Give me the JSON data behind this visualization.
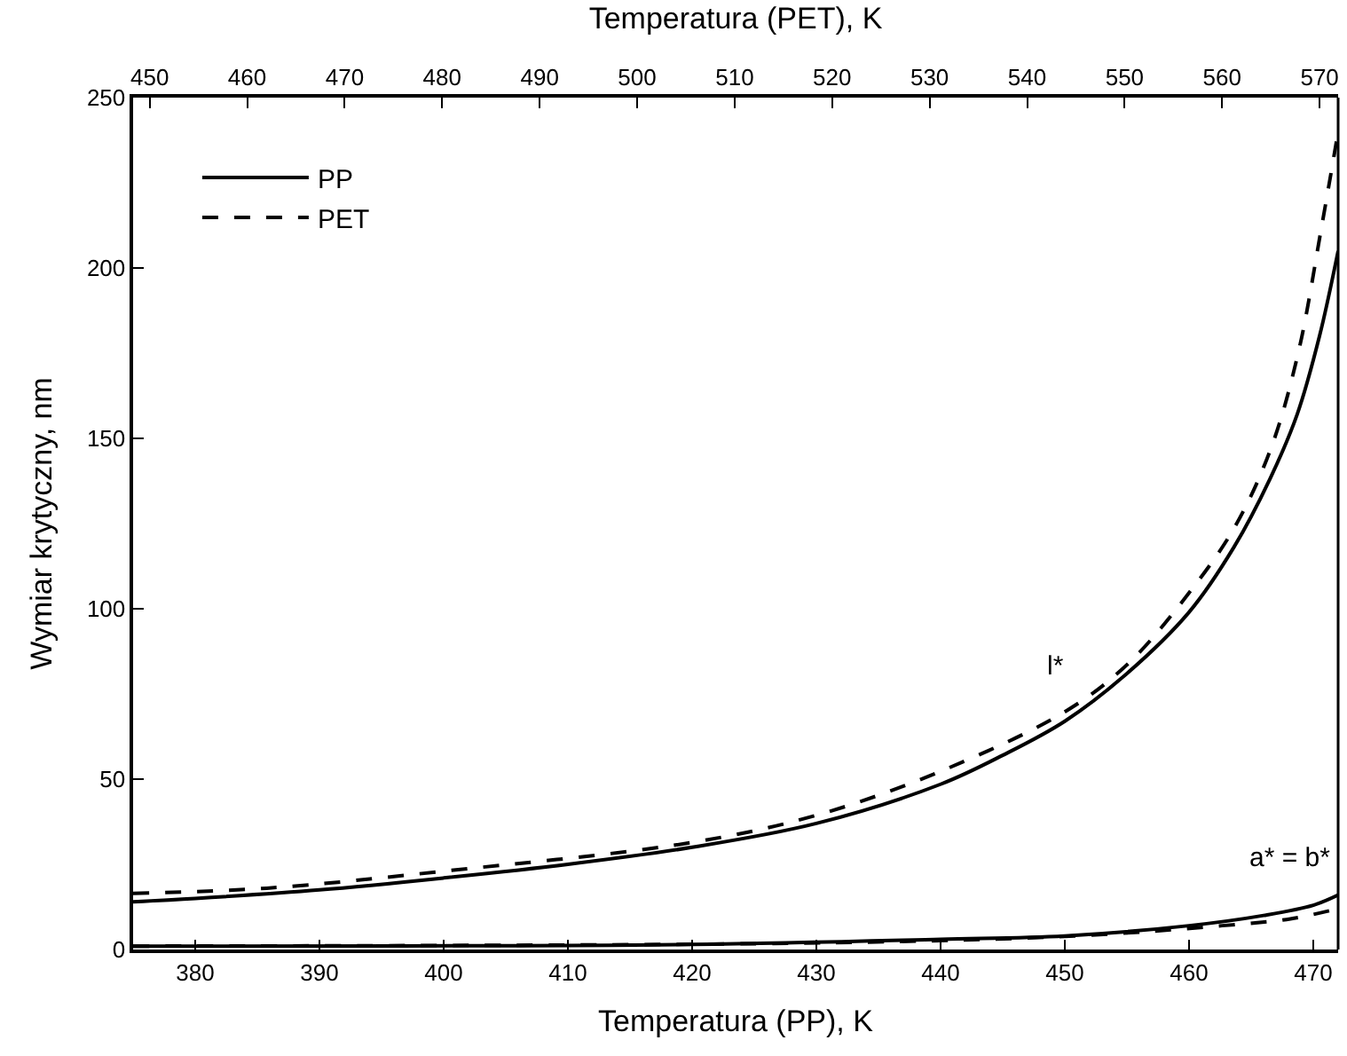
{
  "chart_data": {
    "type": "line",
    "xlabel": "Temperatura (PP), K",
    "x2label": "Temperatura (PET), K",
    "ylabel": "Wymiar krytyczny, nm",
    "xlim": [
      375,
      472
    ],
    "xticks": [
      380,
      390,
      400,
      410,
      420,
      430,
      440,
      450,
      460,
      470
    ],
    "x2lim": [
      448.3,
      571.9
    ],
    "x2ticks": [
      450,
      460,
      470,
      480,
      490,
      500,
      510,
      520,
      530,
      540,
      550,
      560,
      570
    ],
    "ylim": [
      0,
      250
    ],
    "yticks": [
      0,
      50,
      100,
      150,
      200,
      250
    ],
    "legend": "top left",
    "marker": "none",
    "series": [
      {
        "name": "PP",
        "color": "#000000",
        "line_style": "solid",
        "x": [
          375,
          380,
          390,
          400,
          410,
          420,
          430,
          440,
          445,
          450,
          455,
          460,
          463.6,
          466.5,
          468.7,
          470.5,
          472
        ],
        "values": [
          14,
          15,
          17.5,
          21,
          25,
          30,
          37,
          48.5,
          57,
          67,
          81,
          99,
          118,
          138,
          157,
          180,
          205
        ]
      },
      {
        "name": "PET",
        "color": "#000000",
        "line_style": "dashed",
        "axis": "x2",
        "x": [
          448.3,
          462,
          480.2,
          505.8,
          518.5,
          531.3,
          544,
          550.4,
          556.7,
          561.3,
          565,
          567.8,
          570.2,
          571.9
        ],
        "values": [
          16.5,
          18,
          23,
          31.5,
          39.5,
          52.5,
          70,
          84,
          105,
          124,
          147,
          175,
          212,
          240
        ]
      },
      {
        "color": "#000000",
        "line_style": "solid",
        "x": [
          375,
          420,
          440,
          450,
          460,
          466,
          470,
          472
        ],
        "values": [
          1,
          1.5,
          3,
          4,
          7,
          10,
          13,
          16
        ]
      },
      {
        "color": "#000000",
        "line_style": "dashed",
        "axis": "x2",
        "x": [
          448.3,
          520,
          545,
          560,
          567,
          571.9
        ],
        "values": [
          1,
          2,
          4,
          7,
          9,
          12
        ]
      }
    ],
    "annotations": [
      "l*",
      "a* = b*"
    ]
  }
}
